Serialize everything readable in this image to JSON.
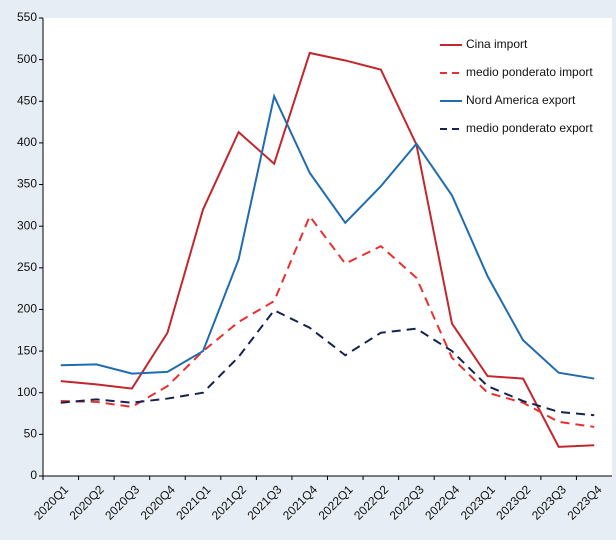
{
  "chart_data": {
    "type": "line",
    "categories": [
      "2020Q1",
      "2020Q2",
      "2020Q3",
      "2020Q4",
      "2021Q1",
      "2021Q2",
      "2021Q3",
      "2021Q4",
      "2022Q1",
      "2022Q2",
      "2022Q3",
      "2022Q4",
      "2023Q1",
      "2023Q2",
      "2023Q3",
      "2023Q4"
    ],
    "series": [
      {
        "name": "Cina import",
        "color": "#c1272d",
        "dashed": false,
        "values": [
          114,
          110,
          105,
          172,
          320,
          413,
          375,
          508,
          499,
          488,
          398,
          183,
          120,
          117,
          35,
          37
        ]
      },
      {
        "name": "medio ponderato import",
        "color": "#e8312f",
        "dashed": true,
        "values": [
          90,
          89,
          83,
          108,
          150,
          185,
          210,
          312,
          255,
          276,
          238,
          142,
          100,
          88,
          65,
          59
        ]
      },
      {
        "name": "Nord America export",
        "color": "#1f6cb0",
        "dashed": false,
        "values": [
          133,
          134,
          123,
          125,
          150,
          260,
          456,
          364,
          304,
          348,
          399,
          337,
          240,
          163,
          124,
          117
        ]
      },
      {
        "name": "medio ponderato export",
        "color": "#14234f",
        "dashed": true,
        "values": [
          88,
          92,
          88,
          93,
          100,
          143,
          199,
          178,
          145,
          172,
          177,
          150,
          108,
          90,
          77,
          73
        ]
      }
    ],
    "ylim": [
      0,
      550
    ],
    "yticks": [
      0,
      50,
      100,
      150,
      200,
      250,
      300,
      350,
      400,
      450,
      500,
      550
    ],
    "grid": false,
    "legend": "top-right"
  }
}
